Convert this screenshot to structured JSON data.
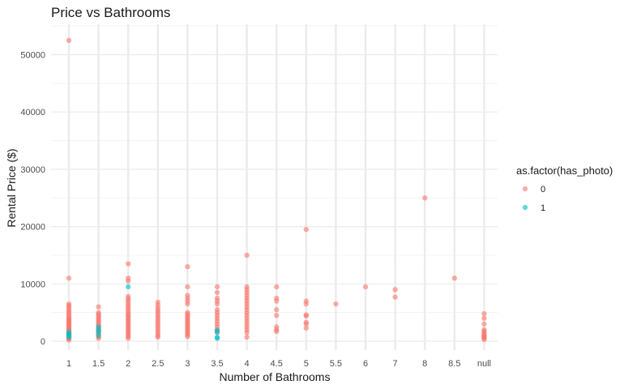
{
  "chart_data": {
    "type": "scatter",
    "title": "Price vs Bathrooms",
    "xlabel": "Number of Bathrooms",
    "ylabel": "Rental Price ($)",
    "categories": [
      "1",
      "1.5",
      "2",
      "2.5",
      "3",
      "3.5",
      "4",
      "4.5",
      "5",
      "5.5",
      "6",
      "7",
      "8",
      "8.5",
      "null"
    ],
    "ylim": [
      0,
      55000
    ],
    "yticks": [
      0,
      10000,
      20000,
      30000,
      40000,
      50000
    ],
    "ytick_labels": [
      "0",
      "10000",
      "20000",
      "30000",
      "40000",
      "50000"
    ],
    "grid": true,
    "legend": {
      "title": "as.factor(has_photo)",
      "position": "right"
    },
    "colors": {
      "0": "#F8766D",
      "1": "#00BFC4",
      "grid": "#EBEBEB",
      "background": "#FFFFFF"
    },
    "series": [
      {
        "name": "0",
        "color": "#F8766D",
        "points": [
          [
            "1",
            52500
          ],
          [
            "1",
            11000
          ],
          [
            "1",
            6500
          ],
          [
            "1",
            6200
          ],
          [
            "1",
            5900
          ],
          [
            "1",
            5500
          ],
          [
            "1",
            5200
          ],
          [
            "1",
            4900
          ],
          [
            "1",
            4600
          ],
          [
            "1",
            4300
          ],
          [
            "1",
            4000
          ],
          [
            "1",
            3800
          ],
          [
            "1",
            3600
          ],
          [
            "1",
            3400
          ],
          [
            "1",
            3200
          ],
          [
            "1",
            3000
          ],
          [
            "1",
            2800
          ],
          [
            "1",
            2600
          ],
          [
            "1",
            2400
          ],
          [
            "1",
            2200
          ],
          [
            "1",
            2000
          ],
          [
            "1",
            1800
          ],
          [
            "1",
            1600
          ],
          [
            "1",
            1400
          ],
          [
            "1",
            1200
          ],
          [
            "1",
            1000
          ],
          [
            "1",
            800
          ],
          [
            "1",
            600
          ],
          [
            "1",
            400
          ],
          [
            "1",
            200
          ],
          [
            "1.5",
            6000
          ],
          [
            "1.5",
            5000
          ],
          [
            "1.5",
            4700
          ],
          [
            "1.5",
            4400
          ],
          [
            "1.5",
            4100
          ],
          [
            "1.5",
            3800
          ],
          [
            "1.5",
            3500
          ],
          [
            "1.5",
            3200
          ],
          [
            "1.5",
            2900
          ],
          [
            "1.5",
            2600
          ],
          [
            "1.5",
            2300
          ],
          [
            "1.5",
            2000
          ],
          [
            "1.5",
            1700
          ],
          [
            "1.5",
            1400
          ],
          [
            "1.5",
            1100
          ],
          [
            "1.5",
            800
          ],
          [
            "1.5",
            500
          ],
          [
            "2",
            13500
          ],
          [
            "2",
            11000
          ],
          [
            "2",
            10500
          ],
          [
            "2",
            7800
          ],
          [
            "2",
            7400
          ],
          [
            "2",
            7000
          ],
          [
            "2",
            6600
          ],
          [
            "2",
            6200
          ],
          [
            "2",
            5800
          ],
          [
            "2",
            5400
          ],
          [
            "2",
            5000
          ],
          [
            "2",
            4700
          ],
          [
            "2",
            4400
          ],
          [
            "2",
            4100
          ],
          [
            "2",
            3800
          ],
          [
            "2",
            3500
          ],
          [
            "2",
            3200
          ],
          [
            "2",
            2900
          ],
          [
            "2",
            2600
          ],
          [
            "2",
            2300
          ],
          [
            "2",
            2000
          ],
          [
            "2",
            1700
          ],
          [
            "2",
            1400
          ],
          [
            "2",
            1100
          ],
          [
            "2",
            800
          ],
          [
            "2",
            500
          ],
          [
            "2.5",
            6800
          ],
          [
            "2.5",
            6300
          ],
          [
            "2.5",
            5800
          ],
          [
            "2.5",
            5400
          ],
          [
            "2.5",
            5000
          ],
          [
            "2.5",
            4600
          ],
          [
            "2.5",
            4200
          ],
          [
            "2.5",
            3800
          ],
          [
            "2.5",
            3400
          ],
          [
            "2.5",
            3000
          ],
          [
            "2.5",
            2600
          ],
          [
            "2.5",
            2200
          ],
          [
            "2.5",
            1800
          ],
          [
            "2.5",
            1400
          ],
          [
            "2.5",
            1000
          ],
          [
            "2.5",
            700
          ],
          [
            "3",
            13000
          ],
          [
            "3",
            9500
          ],
          [
            "3",
            8000
          ],
          [
            "3",
            7500
          ],
          [
            "3",
            7000
          ],
          [
            "3",
            6500
          ],
          [
            "3",
            5000
          ],
          [
            "3",
            4700
          ],
          [
            "3",
            4400
          ],
          [
            "3",
            4100
          ],
          [
            "3",
            3800
          ],
          [
            "3",
            3500
          ],
          [
            "3",
            3200
          ],
          [
            "3",
            2900
          ],
          [
            "3",
            2600
          ],
          [
            "3",
            2300
          ],
          [
            "3",
            2000
          ],
          [
            "3",
            1700
          ],
          [
            "3",
            1400
          ],
          [
            "3",
            1100
          ],
          [
            "3",
            800
          ],
          [
            "3.5",
            9500
          ],
          [
            "3.5",
            8500
          ],
          [
            "3.5",
            7500
          ],
          [
            "3.5",
            7000
          ],
          [
            "3.5",
            6500
          ],
          [
            "3.5",
            5500
          ],
          [
            "3.5",
            5000
          ],
          [
            "3.5",
            4500
          ],
          [
            "3.5",
            4000
          ],
          [
            "3.5",
            3500
          ],
          [
            "3.5",
            3000
          ],
          [
            "3.5",
            2500
          ],
          [
            "3.5",
            2000
          ],
          [
            "3.5",
            1500
          ],
          [
            "4",
            15000
          ],
          [
            "4",
            9500
          ],
          [
            "4",
            9000
          ],
          [
            "4",
            8500
          ],
          [
            "4",
            8000
          ],
          [
            "4",
            7500
          ],
          [
            "4",
            7000
          ],
          [
            "4",
            6500
          ],
          [
            "4",
            6000
          ],
          [
            "4",
            5500
          ],
          [
            "4",
            5000
          ],
          [
            "4",
            4500
          ],
          [
            "4",
            4000
          ],
          [
            "4",
            3500
          ],
          [
            "4",
            3000
          ],
          [
            "4",
            2500
          ],
          [
            "4",
            2000
          ],
          [
            "4",
            1500
          ],
          [
            "4",
            700
          ],
          [
            "4.5",
            9500
          ],
          [
            "4.5",
            7500
          ],
          [
            "4.5",
            7000
          ],
          [
            "4.5",
            5500
          ],
          [
            "4.5",
            4500
          ],
          [
            "4.5",
            2500
          ],
          [
            "4.5",
            2000
          ],
          [
            "4.5",
            1700
          ],
          [
            "5",
            19500
          ],
          [
            "5",
            7000
          ],
          [
            "5",
            6500
          ],
          [
            "5",
            4600
          ],
          [
            "5",
            4400
          ],
          [
            "5",
            3300
          ],
          [
            "5",
            3000
          ],
          [
            "5",
            2300
          ],
          [
            "5.5",
            6500
          ],
          [
            "6",
            9500
          ],
          [
            "7",
            9000
          ],
          [
            "7",
            7700
          ],
          [
            "8",
            25000
          ],
          [
            "8.5",
            11000
          ],
          [
            "null",
            4800
          ],
          [
            "null",
            4000
          ],
          [
            "null",
            3000
          ],
          [
            "null",
            2000
          ],
          [
            "null",
            1700
          ],
          [
            "null",
            1400
          ],
          [
            "null",
            1100
          ],
          [
            "null",
            900
          ],
          [
            "null",
            700
          ],
          [
            "null",
            500
          ],
          [
            "null",
            300
          ]
        ]
      },
      {
        "name": "1",
        "color": "#00BFC4",
        "points": [
          [
            "1",
            1600
          ],
          [
            "1",
            1300
          ],
          [
            "1",
            1000
          ],
          [
            "1",
            700
          ],
          [
            "1.5",
            2500
          ],
          [
            "1.5",
            2000
          ],
          [
            "1.5",
            1600
          ],
          [
            "1.5",
            1000
          ],
          [
            "2",
            9500
          ],
          [
            "3.5",
            1900
          ],
          [
            "3.5",
            1600
          ],
          [
            "3.5",
            700
          ],
          [
            "3.5",
            500
          ]
        ]
      }
    ]
  }
}
